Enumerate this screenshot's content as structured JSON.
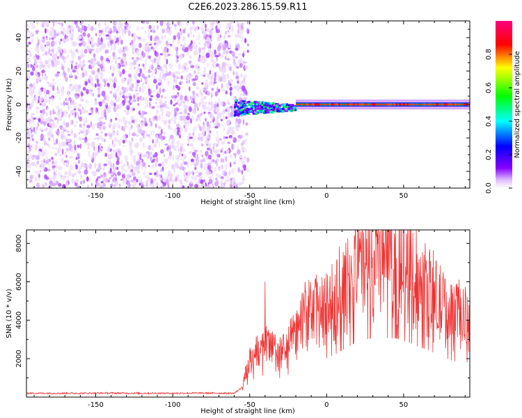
{
  "figure": {
    "title": "C2E6.2023.286.15.59.R11"
  },
  "chart_data": [
    {
      "type": "heatmap",
      "title": "C2E6.2023.286.15.59.R11",
      "xlabel": "Height of straight line (km)",
      "ylabel": "Frequency (Hz)",
      "xlim": [
        -195,
        93
      ],
      "ylim": [
        -50,
        50
      ],
      "xticks": [
        -150,
        -100,
        -50,
        0,
        50
      ],
      "yticks": [
        -40,
        -20,
        0,
        20,
        40
      ],
      "grid": false,
      "description_regions": [
        {
          "x_range": [
            -195,
            -55
          ],
          "y_range": [
            -50,
            50
          ],
          "content": "broadband noise",
          "normalized_amplitude_range": [
            0.0,
            0.1
          ]
        },
        {
          "x_range": [
            -60,
            -20
          ],
          "y_range": [
            -10,
            5
          ],
          "content": "signal onset",
          "normalized_amplitude_range": [
            0.1,
            0.9
          ]
        },
        {
          "x_range": [
            -20,
            93
          ],
          "y_range": [
            -2,
            2
          ],
          "content": "narrow line near 0 Hz",
          "normalized_amplitude_range": [
            0.3,
            0.95
          ]
        }
      ],
      "colorbar": {
        "label": "Normalized spectral amplitude",
        "range": [
          0.0,
          1.0
        ],
        "ticks": [
          "0.0",
          "0.2",
          "0.4",
          "0.6",
          "0.8"
        ],
        "tick_values": [
          0.0,
          0.2,
          0.4,
          0.6,
          0.8
        ],
        "colormap": [
          "#ffffff",
          "#8800ff",
          "#0000ff",
          "#00ffff",
          "#00ff00",
          "#ffff00",
          "#ff0000",
          "#ff0080"
        ]
      }
    },
    {
      "type": "line",
      "xlabel": "Height of straight line (km)",
      "ylabel": "SNR (10 * v/v)",
      "xlim": [
        -195,
        93
      ],
      "ylim": [
        0,
        8700
      ],
      "xticks": [
        -150,
        -100,
        -50,
        0,
        50
      ],
      "yticks": [
        2000,
        4000,
        6000,
        8000
      ],
      "grid": false,
      "color": "#ee3333",
      "x": [
        -195,
        -180,
        -160,
        -140,
        -120,
        -100,
        -80,
        -60,
        -55,
        -50,
        -45,
        -40,
        -35,
        -30,
        -25,
        -20,
        -15,
        -10,
        -5,
        0,
        5,
        10,
        15,
        20,
        25,
        30,
        35,
        40,
        45,
        50,
        55,
        60,
        65,
        70,
        75,
        80,
        85,
        93
      ],
      "y": [
        200,
        200,
        200,
        210,
        200,
        200,
        210,
        200,
        500,
        1800,
        2300,
        2600,
        2400,
        2200,
        2600,
        3300,
        4100,
        4300,
        4500,
        4500,
        4900,
        5400,
        5900,
        6400,
        6600,
        6900,
        7000,
        6800,
        6800,
        6500,
        6200,
        5800,
        5500,
        5100,
        4700,
        4300,
        4100,
        4000
      ],
      "spike_extremes": [
        {
          "x": -40,
          "y": 6000
        },
        {
          "x": 15,
          "y": 7400
        },
        {
          "x": 23,
          "y": 8600
        },
        {
          "x": 33,
          "y": 8500
        },
        {
          "x": 87,
          "y": 2500
        }
      ]
    }
  ]
}
